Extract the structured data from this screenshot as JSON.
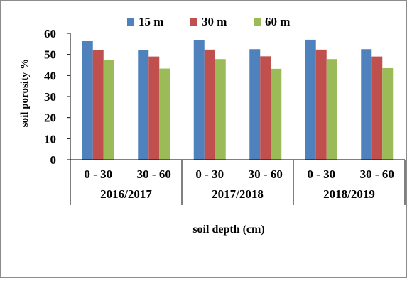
{
  "chart_data": {
    "type": "bar",
    "title": "",
    "xlabel": "soil depth (cm)",
    "ylabel": "soil porosity %",
    "ylim": [
      0,
      60
    ],
    "yticks": [
      0,
      10,
      20,
      30,
      40,
      50,
      60
    ],
    "grid": false,
    "legend_position": "top",
    "categories": [
      "0 - 30",
      "30 - 60",
      "0 - 30",
      "30 - 60",
      "0 - 30",
      "30 - 60"
    ],
    "groups": [
      {
        "label": "2016/2017",
        "categories": [
          "0 - 30",
          "30 - 60"
        ]
      },
      {
        "label": "2017/2018",
        "categories": [
          "0 - 30",
          "30 - 60"
        ]
      },
      {
        "label": "2018/2019",
        "categories": [
          "0 - 30",
          "30 - 60"
        ]
      }
    ],
    "series": [
      {
        "name": "15 m",
        "color": "#4f81bd",
        "values": [
          56.3,
          52.2,
          56.8,
          52.5,
          57.0,
          52.5
        ]
      },
      {
        "name": "30 m",
        "color": "#c0504d",
        "values": [
          52.1,
          49.0,
          52.3,
          49.1,
          52.3,
          49.0
        ]
      },
      {
        "name": "60 m",
        "color": "#9bbb59",
        "values": [
          47.4,
          43.3,
          47.8,
          43.2,
          47.8,
          43.5
        ]
      }
    ]
  }
}
